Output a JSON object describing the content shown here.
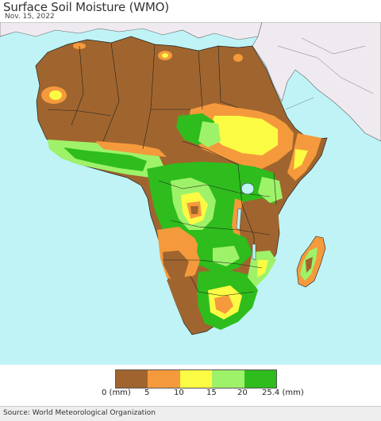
{
  "header": {
    "title": "Surface Soil Moisture (WMO)",
    "date": "Nov. 15, 2022"
  },
  "legend": {
    "colors": [
      "#a0652e",
      "#f59a3c",
      "#fbfb43",
      "#9ef26a",
      "#2ebd1c"
    ],
    "ticks": [
      "0 (mm)",
      "5",
      "10",
      "15",
      "20",
      "25.4 (mm)"
    ]
  },
  "footer": {
    "source": "Source: World Meteorological Organization"
  }
}
